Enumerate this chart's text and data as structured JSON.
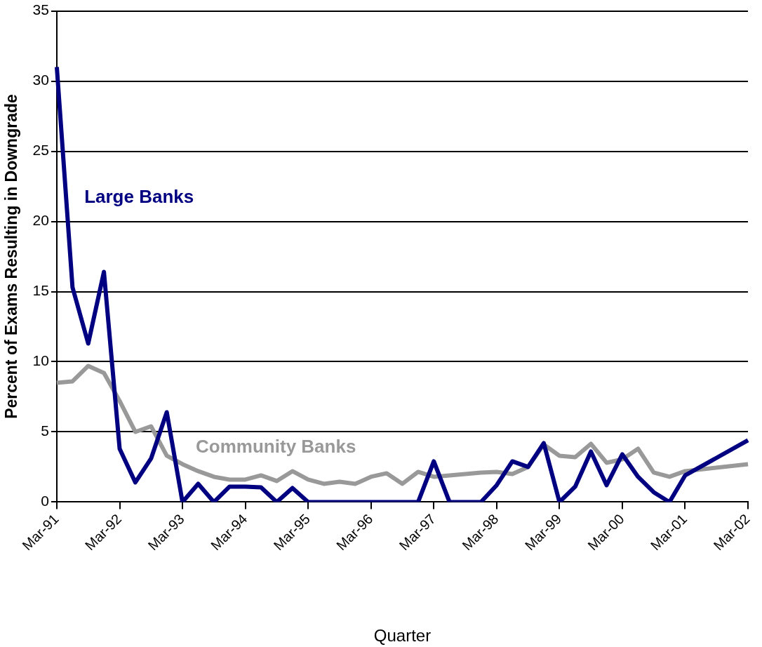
{
  "chart_data": {
    "type": "line",
    "xlabel": "Quarter",
    "ylabel": "Percent of Exams Resulting in Downgrade",
    "categories": [
      "Mar-91",
      null,
      null,
      null,
      "Mar-92",
      null,
      null,
      null,
      "Mar-93",
      null,
      null,
      null,
      "Mar-94",
      null,
      null,
      null,
      "Mar-95",
      null,
      null,
      null,
      "Mar-96",
      null,
      null,
      null,
      "Mar-97",
      null,
      null,
      null,
      "Mar-98",
      null,
      null,
      null,
      "Mar-99",
      null,
      null,
      null,
      "Mar-00",
      null,
      null,
      null,
      "Mar-01",
      null,
      null,
      null,
      "Mar-02"
    ],
    "series": [
      {
        "name": "Large Banks",
        "color": "#000080",
        "values": [
          31.0,
          15.3,
          11.3,
          16.4,
          3.8,
          1.4,
          3.1,
          6.4,
          0,
          1.3,
          0,
          1.1,
          1.1,
          1.05,
          0,
          1.0,
          0,
          0,
          0,
          0,
          0,
          0,
          0,
          0,
          2.9,
          0,
          0,
          0,
          1.2,
          2.9,
          2.5,
          4.2,
          0,
          1.1,
          3.6,
          1.2,
          3.4,
          1.8,
          0.7,
          0,
          1.9,
          null,
          null,
          null,
          4.4
        ]
      },
      {
        "name": "Community Banks",
        "color": "#999999",
        "values": [
          8.5,
          8.6,
          9.7,
          9.2,
          7.2,
          5.0,
          5.4,
          3.3,
          2.7,
          2.2,
          1.8,
          1.6,
          1.6,
          1.9,
          1.5,
          2.2,
          1.6,
          1.3,
          1.45,
          1.3,
          1.8,
          2.05,
          1.3,
          2.15,
          1.8,
          1.9,
          2.0,
          2.1,
          2.15,
          2.0,
          2.5,
          4.1,
          3.3,
          3.2,
          4.15,
          2.8,
          3.05,
          3.8,
          2.1,
          1.8,
          2.2,
          null,
          null,
          null,
          2.7
        ]
      }
    ],
    "ylim": [
      0,
      35
    ],
    "yticks": [
      0,
      5,
      10,
      15,
      20,
      25,
      30,
      35
    ],
    "grid": "y",
    "legend": false,
    "marker": "none"
  }
}
